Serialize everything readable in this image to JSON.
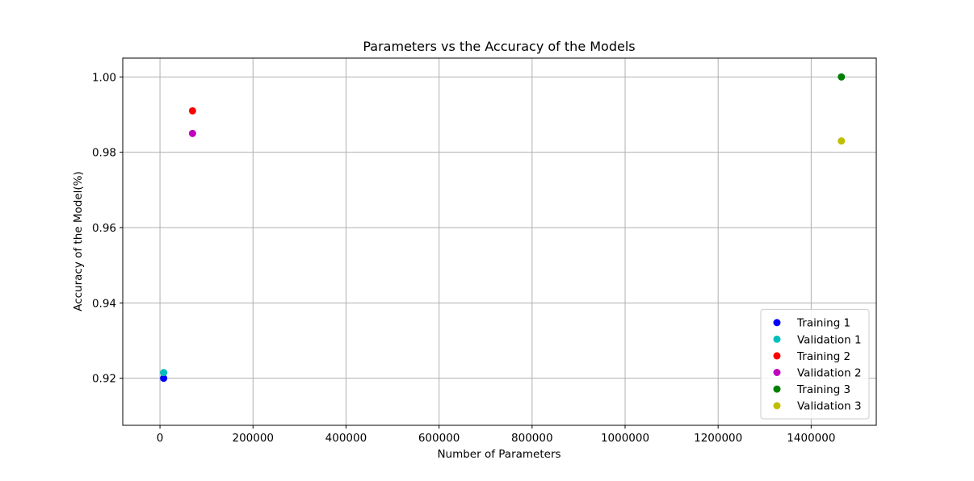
{
  "chart_data": {
    "type": "scatter",
    "title": "Parameters vs the Accuracy of the Models",
    "xlabel": "Number of Parameters",
    "ylabel": "Accuracy of the Model(%)",
    "xlim": [
      -80000,
      1540000
    ],
    "ylim": [
      0.9075,
      1.005
    ],
    "xticks": [
      0,
      200000,
      400000,
      600000,
      800000,
      1000000,
      1200000,
      1400000
    ],
    "xtick_labels": [
      "0",
      "200000",
      "400000",
      "600000",
      "800000",
      "1000000",
      "1200000",
      "1400000"
    ],
    "yticks": [
      0.92,
      0.94,
      0.96,
      0.98,
      1.0
    ],
    "ytick_labels": [
      "0.92",
      "0.94",
      "0.96",
      "0.98",
      "1.00"
    ],
    "grid": true,
    "legend_position": "lower right",
    "series": [
      {
        "name": "Training 1",
        "color": "#0000ff",
        "points": [
          {
            "x": 8000,
            "y": 0.92
          }
        ]
      },
      {
        "name": "Validation 1",
        "color": "#00bfbf",
        "points": [
          {
            "x": 8000,
            "y": 0.9215
          }
        ]
      },
      {
        "name": "Training 2",
        "color": "#ff0000",
        "points": [
          {
            "x": 70000,
            "y": 0.991
          }
        ]
      },
      {
        "name": "Validation 2",
        "color": "#bf00bf",
        "points": [
          {
            "x": 70000,
            "y": 0.985
          }
        ]
      },
      {
        "name": "Training 3",
        "color": "#008000",
        "points": [
          {
            "x": 1465000,
            "y": 1.0
          }
        ]
      },
      {
        "name": "Validation 3",
        "color": "#bfbf00",
        "points": [
          {
            "x": 1465000,
            "y": 0.983
          }
        ]
      }
    ]
  }
}
